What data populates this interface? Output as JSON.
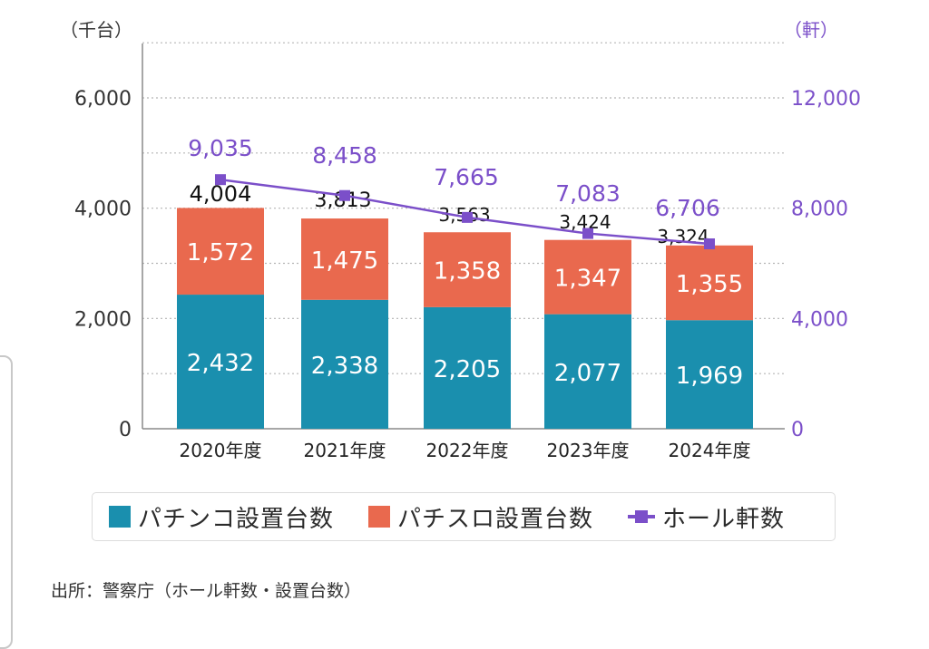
{
  "chart_data": {
    "type": "bar",
    "subtype": "stacked bar with line on secondary axis",
    "categories": [
      "2020年度",
      "2021年度",
      "2022年度",
      "2023年度",
      "2024年度"
    ],
    "series": [
      {
        "name": "パチンコ設置台数",
        "kind": "bar",
        "axis": "left",
        "color": "#1a8fae",
        "values": [
          2432,
          2338,
          2205,
          2077,
          1969
        ]
      },
      {
        "name": "パチスロ設置台数",
        "kind": "bar",
        "axis": "left",
        "color": "#e9694e",
        "values": [
          1572,
          1475,
          1358,
          1347,
          1355
        ]
      },
      {
        "name": "ホール軒数",
        "kind": "line",
        "axis": "right",
        "color": "#7b4fc9",
        "values": [
          9035,
          8458,
          7665,
          7083,
          6706
        ]
      }
    ],
    "totals": [
      4004,
      3813,
      3563,
      3424,
      3324
    ],
    "total_labels": [
      "4,004",
      "3,813",
      "3,563",
      "3,424",
      "3,324"
    ],
    "bar_labels": {
      "pachinko": [
        "2,432",
        "2,338",
        "2,205",
        "2,077",
        "1,969"
      ],
      "pachislot": [
        "1,572",
        "1,475",
        "1,358",
        "1,347",
        "1,355"
      ]
    },
    "line_labels": [
      "9,035",
      "8,458",
      "7,665",
      "7,083",
      "6,706"
    ],
    "left_axis": {
      "unit_label": "（千台）",
      "ylim": [
        0,
        6000
      ],
      "ticks": [
        0,
        2000,
        4000,
        6000
      ],
      "tick_labels": [
        "0",
        "2,000",
        "4,000",
        "6,000"
      ],
      "minor_gridlines": [
        1000,
        3000,
        5000,
        7000
      ]
    },
    "right_axis": {
      "unit_label": "（軒）",
      "ylim": [
        0,
        12000
      ],
      "ticks": [
        0,
        4000,
        8000,
        12000
      ],
      "tick_labels": [
        "0",
        "4,000",
        "8,000",
        "12,000"
      ],
      "color": "#7b4fc9"
    },
    "grid": "dotted horizontal",
    "legend_position": "bottom"
  },
  "legend": {
    "items": [
      {
        "label": "パチンコ設置台数",
        "color": "#1a8fae",
        "type": "square"
      },
      {
        "label": "パチスロ設置台数",
        "color": "#e9694e",
        "type": "square"
      },
      {
        "label": "ホール軒数",
        "color": "#7b4fc9",
        "type": "line-marker"
      }
    ]
  },
  "source": "出所：警察庁（ホール軒数・設置台数）"
}
